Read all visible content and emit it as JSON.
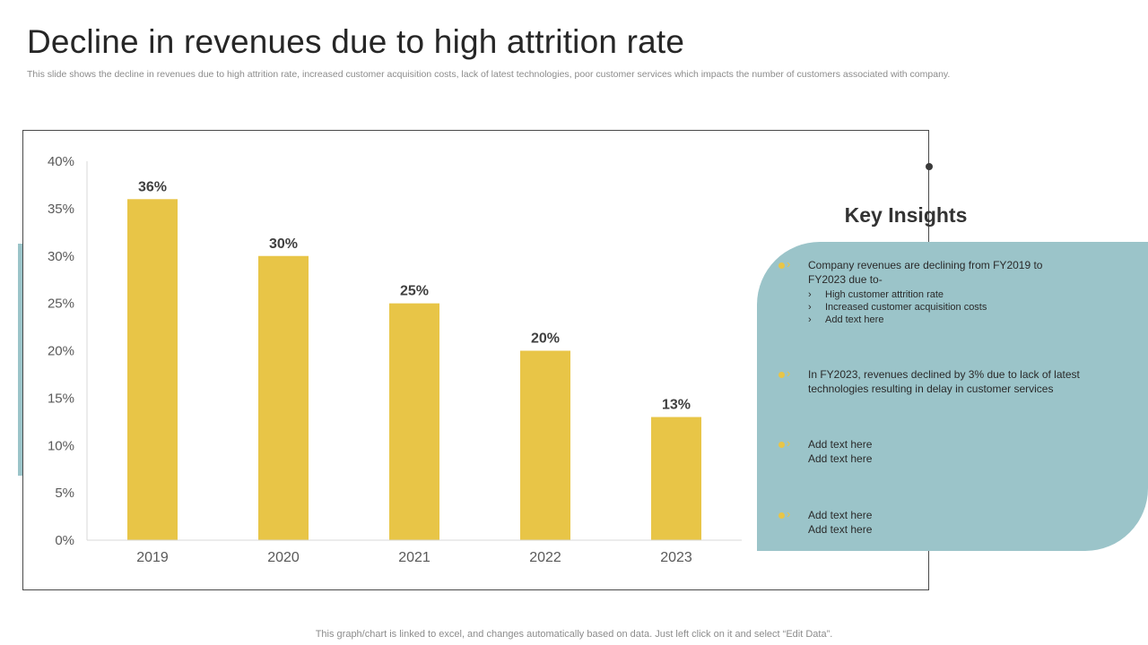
{
  "header": {
    "title": "Decline in revenues due to high attrition rate",
    "subtitle": "This slide shows the decline in revenues due to high attrition rate,  increased customer acquisition costs, lack of latest technologies, poor customer services which impacts the number of customers associated with company."
  },
  "chart_data": {
    "type": "bar",
    "categories": [
      "2019",
      "2020",
      "2021",
      "2022",
      "2023"
    ],
    "values": [
      36,
      30,
      25,
      20,
      13
    ],
    "data_labels": [
      "36%",
      "30%",
      "25%",
      "20%",
      "13%"
    ],
    "ylim": [
      0,
      40
    ],
    "yticks": [
      0,
      5,
      10,
      15,
      20,
      25,
      30,
      35,
      40
    ],
    "ytick_labels": [
      "0%",
      "5%",
      "10%",
      "15%",
      "20%",
      "25%",
      "30%",
      "35%",
      "40%"
    ],
    "title": "",
    "xlabel": "",
    "ylabel": "",
    "grid": false,
    "bar_color": "#e8c547"
  },
  "insights": {
    "heading": "Key Insights",
    "items": [
      {
        "lines": [
          "Company revenues  are declining from FY2019 to",
          "FY2023 due to-"
        ],
        "sub": [
          "High customer attrition rate",
          "Increased customer acquisition costs",
          "Add text here"
        ]
      },
      {
        "lines": [
          "In FY2023, revenues  declined by 3% due to lack of latest",
          "technologies resulting in delay in customer services"
        ],
        "sub": []
      },
      {
        "lines": [
          "Add text here",
          "Add text here"
        ],
        "sub": []
      },
      {
        "lines": [
          "Add text here",
          "Add text here"
        ],
        "sub": []
      }
    ]
  },
  "footer": {
    "note": "This graph/chart is linked to excel,  and changes automatically based on data. Just left click on it and select “Edit Data”."
  },
  "colors": {
    "accent_teal": "#9bc4c9",
    "bar_yellow": "#e8c547"
  }
}
